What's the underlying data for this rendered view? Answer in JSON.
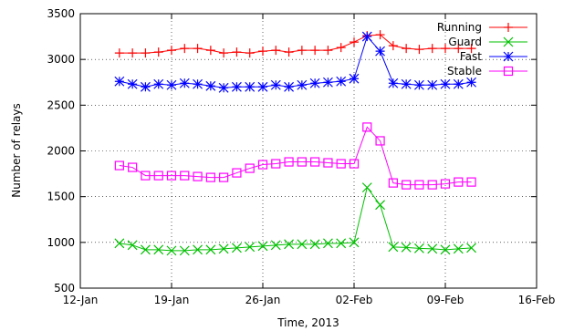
{
  "chart_data": {
    "type": "line",
    "title": "",
    "xlabel": "Time, 2013",
    "ylabel": "Number of relays",
    "x_ticks": [
      "12-Jan",
      "19-Jan",
      "26-Jan",
      "02-Feb",
      "09-Feb",
      "16-Feb"
    ],
    "y_ticks": [
      "500",
      "1000",
      "1500",
      "2000",
      "2500",
      "3000",
      "3500"
    ],
    "xlim_days": [
      0,
      35
    ],
    "ylim": [
      500,
      3500
    ],
    "grid": true,
    "legend_position": "top-right",
    "x": [
      "15-Jan",
      "16-Jan",
      "17-Jan",
      "18-Jan",
      "19-Jan",
      "20-Jan",
      "21-Jan",
      "22-Jan",
      "23-Jan",
      "24-Jan",
      "25-Jan",
      "26-Jan",
      "27-Jan",
      "28-Jan",
      "29-Jan",
      "30-Jan",
      "31-Jan",
      "01-Feb",
      "02-Feb",
      "03-Feb",
      "04-Feb",
      "05-Feb",
      "06-Feb",
      "07-Feb",
      "08-Feb",
      "09-Feb",
      "10-Feb",
      "11-Feb"
    ],
    "series": [
      {
        "name": "Running",
        "color": "#ff0000",
        "marker": "plus",
        "values": [
          3070,
          3070,
          3070,
          3080,
          3100,
          3120,
          3120,
          3100,
          3070,
          3080,
          3070,
          3090,
          3100,
          3080,
          3100,
          3100,
          3100,
          3130,
          3190,
          3260,
          3270,
          3150,
          3120,
          3110,
          3120,
          3120,
          3120,
          3120
        ]
      },
      {
        "name": "Guard",
        "color": "#00c000",
        "marker": "x",
        "values": [
          990,
          970,
          920,
          920,
          910,
          910,
          920,
          920,
          930,
          940,
          950,
          960,
          970,
          980,
          980,
          980,
          990,
          990,
          1000,
          1600,
          1410,
          950,
          945,
          935,
          930,
          920,
          930,
          940
        ]
      },
      {
        "name": "Fast",
        "color": "#0000ff",
        "marker": "asterisk",
        "values": [
          2760,
          2730,
          2700,
          2730,
          2720,
          2740,
          2730,
          2710,
          2690,
          2700,
          2700,
          2700,
          2720,
          2700,
          2720,
          2740,
          2750,
          2760,
          2790,
          3250,
          3090,
          2740,
          2730,
          2720,
          2720,
          2730,
          2730,
          2750
        ]
      },
      {
        "name": "Stable",
        "color": "#ff00ff",
        "marker": "square",
        "values": [
          1840,
          1820,
          1730,
          1730,
          1730,
          1730,
          1720,
          1710,
          1710,
          1760,
          1810,
          1850,
          1860,
          1880,
          1880,
          1880,
          1870,
          1860,
          1860,
          2260,
          2110,
          1650,
          1630,
          1630,
          1630,
          1640,
          1660,
          1660
        ]
      }
    ]
  }
}
